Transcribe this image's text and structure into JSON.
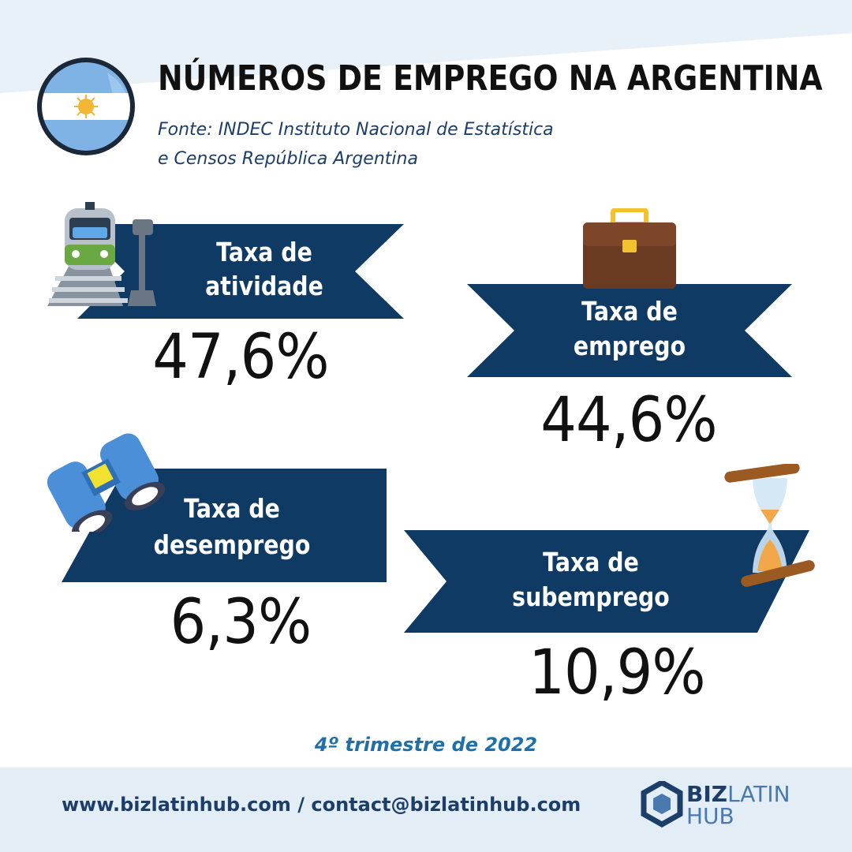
{
  "header": {
    "title": "NÚMEROS DE EMPREGO NA ARGENTINA",
    "source_line1": "Fonte: INDEC Instituto Nacional de Estatística",
    "source_line2": "e Censos República Argentina"
  },
  "stats": {
    "activity": {
      "label_line1": "Taxa de",
      "label_line2": "atividade",
      "value": "47,6%",
      "icon": "train-icon"
    },
    "employment": {
      "label_line1": "Taxa de",
      "label_line2": "emprego",
      "value": "44,6%",
      "icon": "briefcase-icon"
    },
    "unemployment": {
      "label_line1": "Taxa de",
      "label_line2": "desemprego",
      "value": "6,3%",
      "icon": "binoculars-icon"
    },
    "underemployment": {
      "label_line1": "Taxa de",
      "label_line2": "subemprego",
      "value": "10,9%",
      "icon": "hourglass-icon"
    }
  },
  "period": "4º trimestre de 2022",
  "footer": {
    "contact": "www.bizlatinhub.com / contact@bizlatinhub.com",
    "logo_part1": "BIZ",
    "logo_part2": "LATIN",
    "logo_part3": "HUB"
  },
  "colors": {
    "banner": "#0f3a63",
    "light_bg": "#e3edf6",
    "accent_text": "#1f6fa8"
  }
}
